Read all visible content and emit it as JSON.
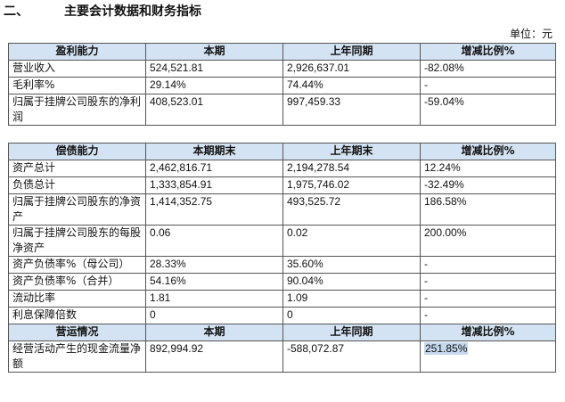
{
  "heading": {
    "num": "二、",
    "title": "主要会计数据和财务指标"
  },
  "unit": "单位：元",
  "profit": {
    "headers": [
      "盈利能力",
      "本期",
      "上年同期",
      "增减比例%"
    ],
    "rows": [
      [
        "营业收入",
        "524,521.81",
        "2,926,637.01",
        "-82.08%"
      ],
      [
        "毛利率%",
        "29.14%",
        "74.44%",
        "-"
      ],
      [
        "归属于挂牌公司股东的净利润",
        "408,523.01",
        "997,459.33",
        "-59.04%"
      ]
    ]
  },
  "solvency": {
    "headers": [
      "偿债能力",
      "本期期末",
      "上年期末",
      "增减比例%"
    ],
    "rows": [
      [
        "资产总计",
        "2,462,816.71",
        "2,194,278.54",
        "12.24%"
      ],
      [
        "负债总计",
        "1,333,854.91",
        "1,975,746.02",
        "-32.49%"
      ],
      [
        "归属于挂牌公司股东的净资产",
        "1,414,352.75",
        "493,525.72",
        "186.58%"
      ],
      [
        "归属于挂牌公司股东的每股净资产",
        "0.06",
        "0.02",
        "200.00%"
      ],
      [
        "资产负债率%（母公司）",
        "28.33%",
        "35.60%",
        "-"
      ],
      [
        "资产负债率%（合并）",
        "54.16%",
        "90.04%",
        "-"
      ],
      [
        "流动比率",
        "1.81",
        "1.09",
        "-"
      ],
      [
        "利息保障倍数",
        "0",
        "0",
        "-"
      ]
    ]
  },
  "operation": {
    "headers": [
      "营运情况",
      "本期",
      "上年同期",
      "增减比例%"
    ],
    "rows": [
      [
        "经营活动产生的现金流量净额",
        "892,994.92",
        "-588,072.87",
        "251.85%"
      ]
    ]
  }
}
